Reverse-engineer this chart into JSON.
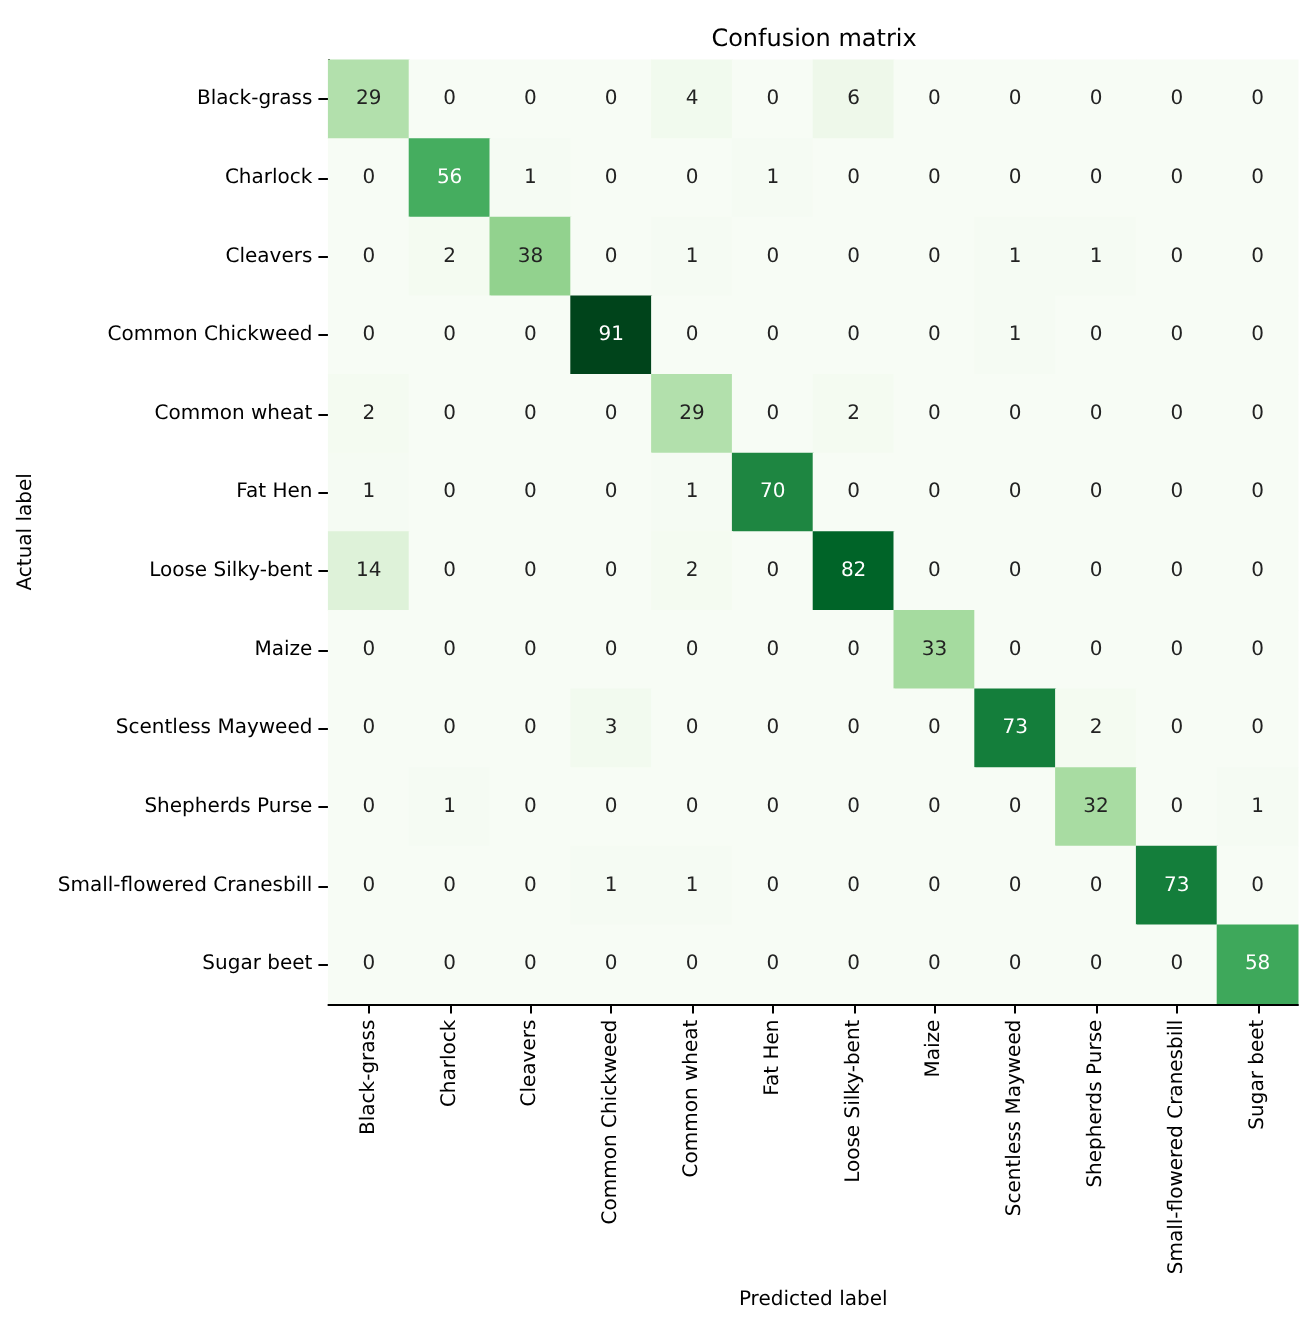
{
  "chart_data": {
    "type": "heatmap",
    "title": "Confusion matrix",
    "xlabel": "Predicted label",
    "ylabel": "Actual label",
    "categories": [
      "Black-grass",
      "Charlock",
      "Cleavers",
      "Common Chickweed",
      "Common wheat",
      "Fat Hen",
      "Loose Silky-bent",
      "Maize",
      "Scentless Mayweed",
      "Shepherds Purse",
      "Small-flowered Cranesbill",
      "Sugar beet"
    ],
    "y_categories": [
      "Black-grass",
      "Charlock",
      "Cleavers",
      "Common Chickweed",
      "Common wheat",
      "Fat Hen",
      "Loose Silky-bent",
      "Maize",
      "Scentless Mayweed",
      "Shepherds Purse",
      "Small-flowered Cranesbill",
      "Sugar beet"
    ],
    "cells": [
      [
        29,
        0,
        0,
        0,
        4,
        0,
        6,
        0,
        0,
        0,
        0,
        0
      ],
      [
        0,
        56,
        1,
        0,
        0,
        1,
        0,
        0,
        0,
        0,
        0,
        0
      ],
      [
        0,
        2,
        38,
        0,
        1,
        0,
        0,
        0,
        1,
        1,
        0,
        0
      ],
      [
        0,
        0,
        0,
        91,
        0,
        0,
        0,
        0,
        1,
        0,
        0,
        0
      ],
      [
        2,
        0,
        0,
        0,
        29,
        0,
        2,
        0,
        0,
        0,
        0,
        0
      ],
      [
        1,
        0,
        0,
        0,
        1,
        70,
        0,
        0,
        0,
        0,
        0,
        0
      ],
      [
        14,
        0,
        0,
        0,
        2,
        0,
        82,
        0,
        0,
        0,
        0,
        0
      ],
      [
        0,
        0,
        0,
        0,
        0,
        0,
        0,
        33,
        0,
        0,
        0,
        0
      ],
      [
        0,
        0,
        0,
        3,
        0,
        0,
        0,
        0,
        73,
        2,
        0,
        0
      ],
      [
        0,
        1,
        0,
        0,
        0,
        0,
        0,
        0,
        0,
        32,
        0,
        1
      ],
      [
        0,
        0,
        0,
        1,
        1,
        0,
        0,
        0,
        0,
        0,
        73,
        0
      ],
      [
        0,
        0,
        0,
        0,
        0,
        0,
        0,
        0,
        0,
        0,
        0,
        58
      ]
    ],
    "data_labels": true
  }
}
